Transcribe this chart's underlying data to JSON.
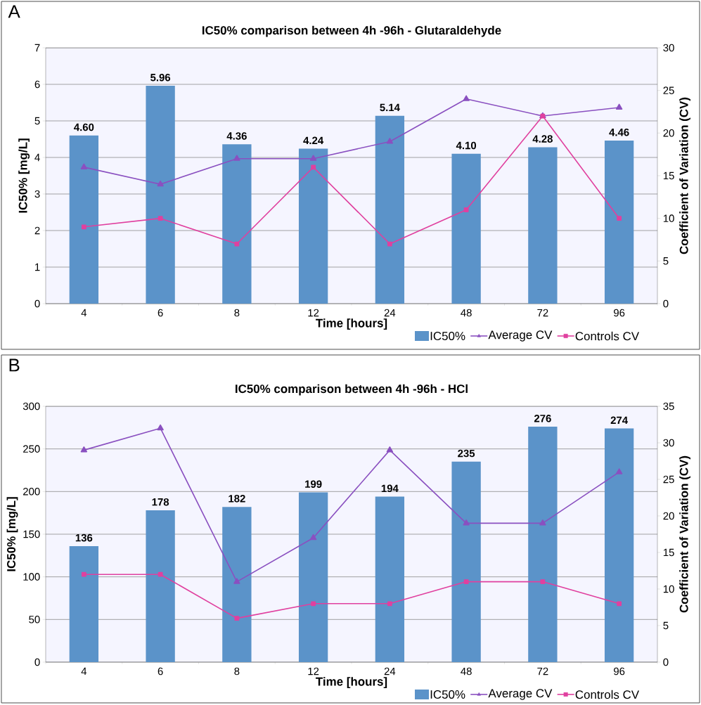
{
  "chart_data": [
    {
      "type": "bar",
      "title": "IC50% comparison between 4h -96h - Glutaraldehyde",
      "xlabel": "Time [hours]",
      "ylabel": "IC50% [mg/L]",
      "y2label": "Coefficient of Variation (CV)",
      "annotations": [
        "A"
      ],
      "categories": [
        "4",
        "6",
        "8",
        "12",
        "24",
        "48",
        "72",
        "96"
      ],
      "series": [
        {
          "name": "IC50%",
          "color": "#5b93c9",
          "values": [
            4.6,
            5.96,
            4.36,
            4.24,
            5.14,
            4.1,
            4.28,
            4.46
          ],
          "value_labels": [
            "4.60",
            "5.96",
            "4.36",
            "4.24",
            "5.14",
            "4.10",
            "4.28",
            "4.46"
          ]
        },
        {
          "name": "Average CV",
          "type": "line",
          "axis": "y2",
          "color": "#8a50c0",
          "marker": "triangle",
          "line_style": "solid",
          "values": [
            16,
            14,
            17,
            17,
            19,
            24,
            22,
            23
          ]
        },
        {
          "name": "Controls CV",
          "type": "line",
          "axis": "y2",
          "color": "#e0409f",
          "marker": "square",
          "line_style": "solid",
          "values": [
            9,
            10,
            7,
            16,
            7,
            11,
            22,
            10
          ]
        }
      ],
      "ylim": [
        0,
        7
      ],
      "yticks": [
        0,
        1,
        2,
        3,
        4,
        5,
        6,
        7
      ],
      "y2lim": [
        0,
        30
      ],
      "y2ticks": [
        0,
        5,
        10,
        15,
        20,
        25,
        30
      ],
      "grid": "y",
      "legend": "bottom right"
    },
    {
      "type": "bar",
      "title": "IC50% comparison between 4h -96h - HCl",
      "xlabel": "Time [hours]",
      "ylabel": "IC50% [mg/L]",
      "y2label": "Coefficient of Variation (CV)",
      "annotations": [
        "B"
      ],
      "categories": [
        "4",
        "6",
        "8",
        "12",
        "24",
        "48",
        "72",
        "96"
      ],
      "series": [
        {
          "name": "IC50%",
          "color": "#5b93c9",
          "values": [
            136,
            178,
            182,
            199,
            194,
            235,
            276,
            274
          ],
          "value_labels": [
            "136",
            "178",
            "182",
            "199",
            "194",
            "235",
            "276",
            "274"
          ]
        },
        {
          "name": "Average CV",
          "type": "line",
          "axis": "y2",
          "color": "#8a50c0",
          "marker": "triangle",
          "line_style": "solid",
          "values": [
            29,
            32,
            11,
            17,
            29,
            19,
            19,
            26
          ]
        },
        {
          "name": "Controls CV",
          "type": "line",
          "axis": "y2",
          "color": "#e0409f",
          "marker": "square",
          "line_style": "solid",
          "values": [
            12,
            12,
            6,
            8,
            8,
            11,
            11,
            8
          ]
        }
      ],
      "ylim": [
        0,
        300
      ],
      "yticks": [
        0,
        50,
        100,
        150,
        200,
        250,
        300
      ],
      "y2lim": [
        0,
        35
      ],
      "y2ticks": [
        0,
        5,
        10,
        15,
        20,
        25,
        30,
        35
      ],
      "grid": "y",
      "legend": "bottom right"
    }
  ]
}
